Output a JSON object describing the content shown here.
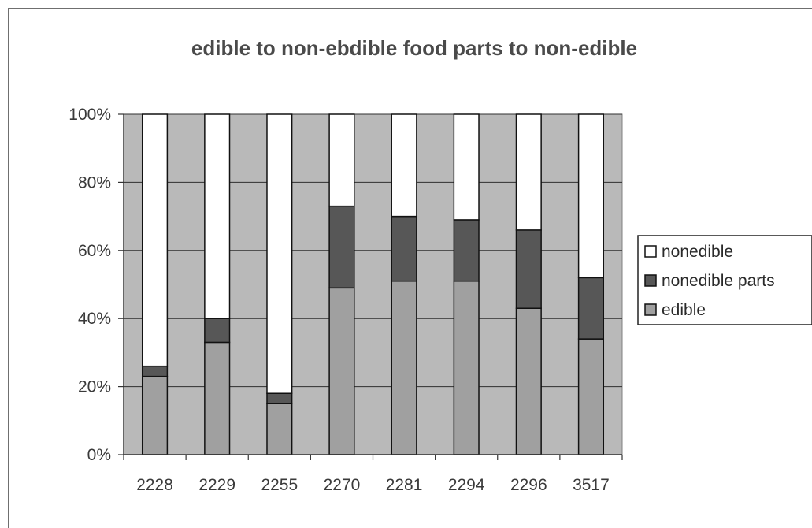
{
  "chart_data": {
    "type": "bar",
    "stacked": true,
    "percent": true,
    "title": "edible to non-ebdible food parts to non-edible",
    "xlabel": "",
    "ylabel": "",
    "categories": [
      "2228",
      "2229",
      "2255",
      "2270",
      "2281",
      "2294",
      "2296",
      "3517"
    ],
    "yticks": [
      "0%",
      "20%",
      "40%",
      "60%",
      "80%",
      "100%"
    ],
    "ylim": [
      0,
      100
    ],
    "grid": true,
    "legend": "right",
    "series": [
      {
        "name": "edible",
        "values": [
          23,
          33,
          15,
          49,
          51,
          51,
          43,
          34
        ],
        "color": "#a0a0a0"
      },
      {
        "name": "nonedible parts",
        "values": [
          3,
          7,
          3,
          24,
          19,
          18,
          23,
          18
        ],
        "color": "#575757"
      },
      {
        "name": "nonedible",
        "values": [
          74,
          60,
          82,
          27,
          30,
          31,
          34,
          48
        ],
        "color": "#ffffff"
      }
    ],
    "legend_order": [
      "nonedible",
      "nonedible parts",
      "edible"
    ],
    "plot_background": "#b9b9b9"
  }
}
